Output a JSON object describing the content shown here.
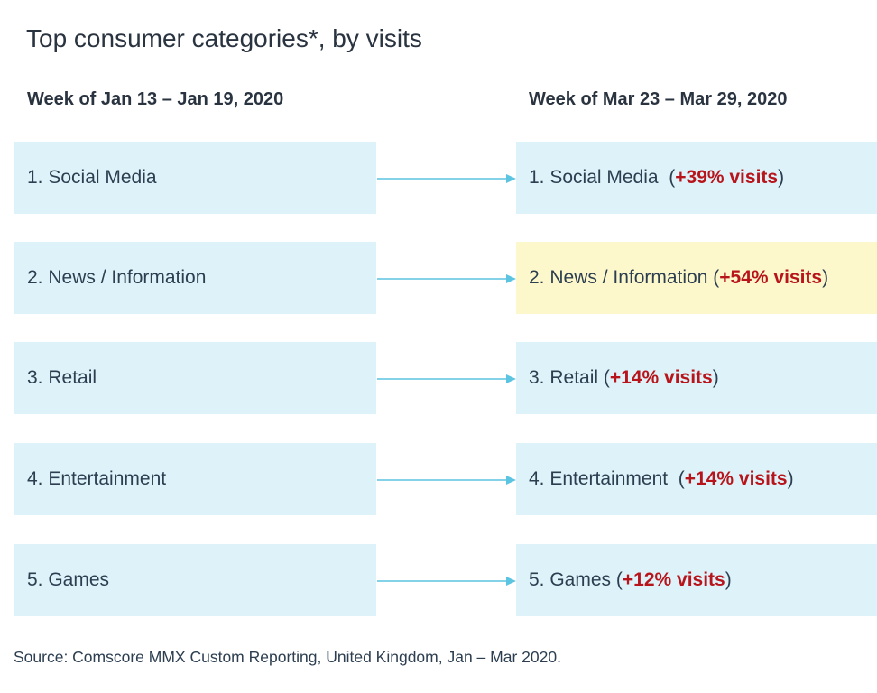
{
  "title": "Top consumer categories*, by visits",
  "before_header": "Week of Jan 13 – Jan 19, 2020",
  "after_header": "Week of Mar 23 – Mar 29, 2020",
  "rows": [
    {
      "before": "1. Social Media",
      "after": "1. Social Media",
      "after_gap": "  ",
      "delta": "+39% visits",
      "highlight": false
    },
    {
      "before": "2. News / Information",
      "after": "2. News / Information",
      "after_gap": " ",
      "delta": "+54% visits",
      "highlight": true
    },
    {
      "before": "3. Retail",
      "after": "3. Retail",
      "after_gap": " ",
      "delta": "+14% visits",
      "highlight": false
    },
    {
      "before": "4. Entertainment",
      "after": "4. Entertainment",
      "after_gap": "  ",
      "delta": "+14% visits",
      "highlight": false
    },
    {
      "before": "5. Games",
      "after": "5. Games",
      "after_gap": " ",
      "delta": "+12% visits",
      "highlight": false
    }
  ],
  "source": "Source: Comscore MMX Custom Reporting, United Kingdom, Jan – Mar 2020.",
  "colors": {
    "box_fill": "#ddf3f9",
    "highlight_fill": "#fdf8cc",
    "arrow": "#5bc4e0",
    "delta_text": "#b8141b"
  }
}
